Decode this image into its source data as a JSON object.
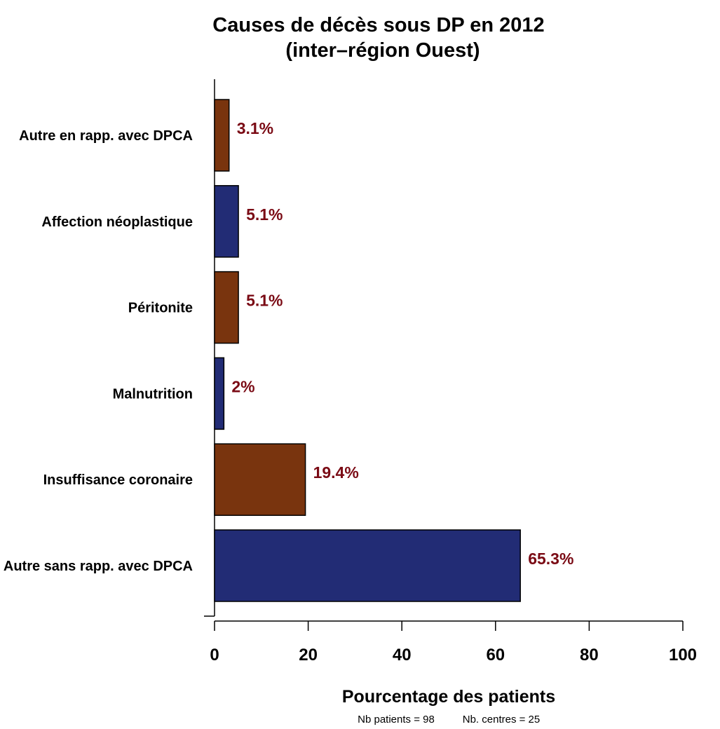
{
  "chart_data": {
    "type": "bar",
    "orientation": "horizontal",
    "title_line1": "Causes de décès sous DP en 2012",
    "title_line2": "(inter–région Ouest)",
    "xlabel": "Pourcentage des patients",
    "ylabel": "",
    "xlim": [
      0,
      100
    ],
    "x_ticks": [
      "0",
      "20",
      "40",
      "60",
      "80",
      "100"
    ],
    "categories": [
      "Autre en rapp. avec DPCA",
      "Affection néoplastique",
      "Péritonite",
      "Malnutrition",
      "Insuffisance coronaire",
      "Autre sans rapp. avec DPCA"
    ],
    "values": [
      3.1,
      5.1,
      5.1,
      2.0,
      19.4,
      65.3
    ],
    "value_labels": [
      "3.1%",
      "5.1%",
      "5.1%",
      "2%",
      "19.4%",
      "65.3%"
    ],
    "bar_colors": [
      "#79340e",
      "#222c75",
      "#79340e",
      "#222c75",
      "#79340e",
      "#222c75"
    ],
    "label_color": "#7a0a14",
    "grid": false,
    "legend": "none"
  },
  "footnote": {
    "patients": "Nb patients =  98",
    "centres": "Nb. centres =  25"
  }
}
